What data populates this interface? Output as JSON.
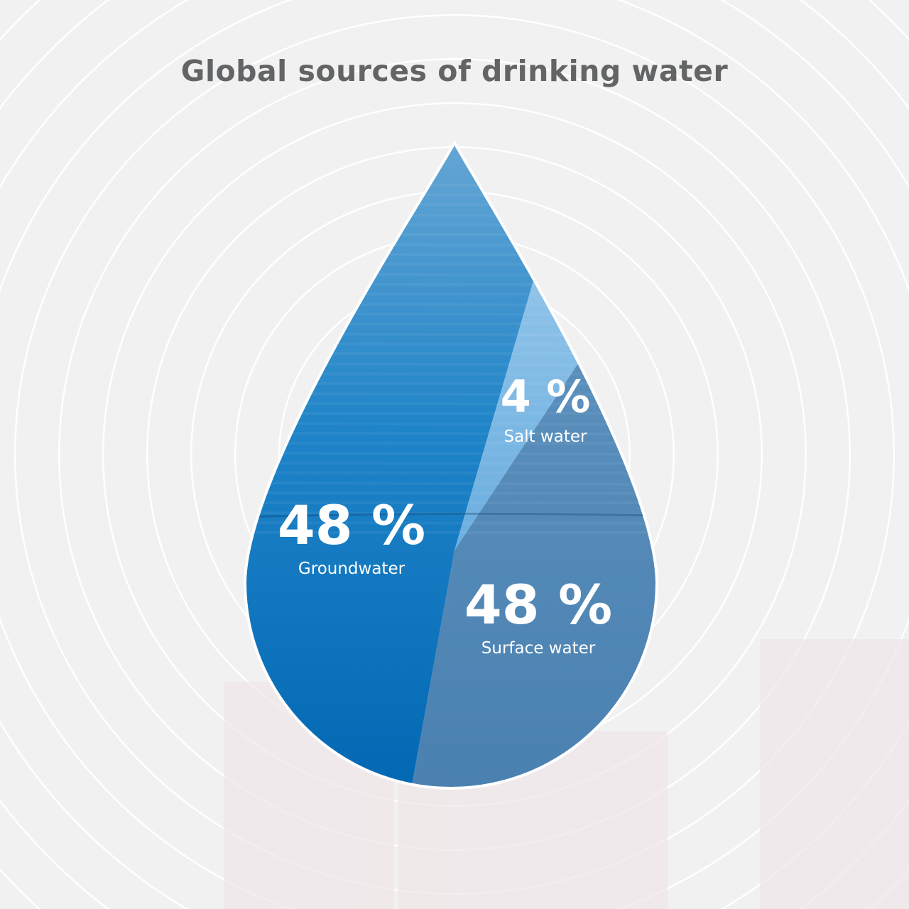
{
  "chart_data": {
    "type": "pie",
    "title": "Global sources of drinking water",
    "slices": [
      {
        "label": "Groundwater",
        "value": 48,
        "display": "48 %",
        "color": "#0a74bf"
      },
      {
        "label": "Salt water",
        "value": 4,
        "display": "4 %",
        "color": "#7ab6df"
      },
      {
        "label": "Surface water",
        "value": 48,
        "display": "48 %",
        "color": "#4a84b4"
      }
    ],
    "shape": "water drop"
  },
  "colors": {
    "background": "#f1f1f1",
    "title": "#626466",
    "rings": "#ffffff"
  }
}
